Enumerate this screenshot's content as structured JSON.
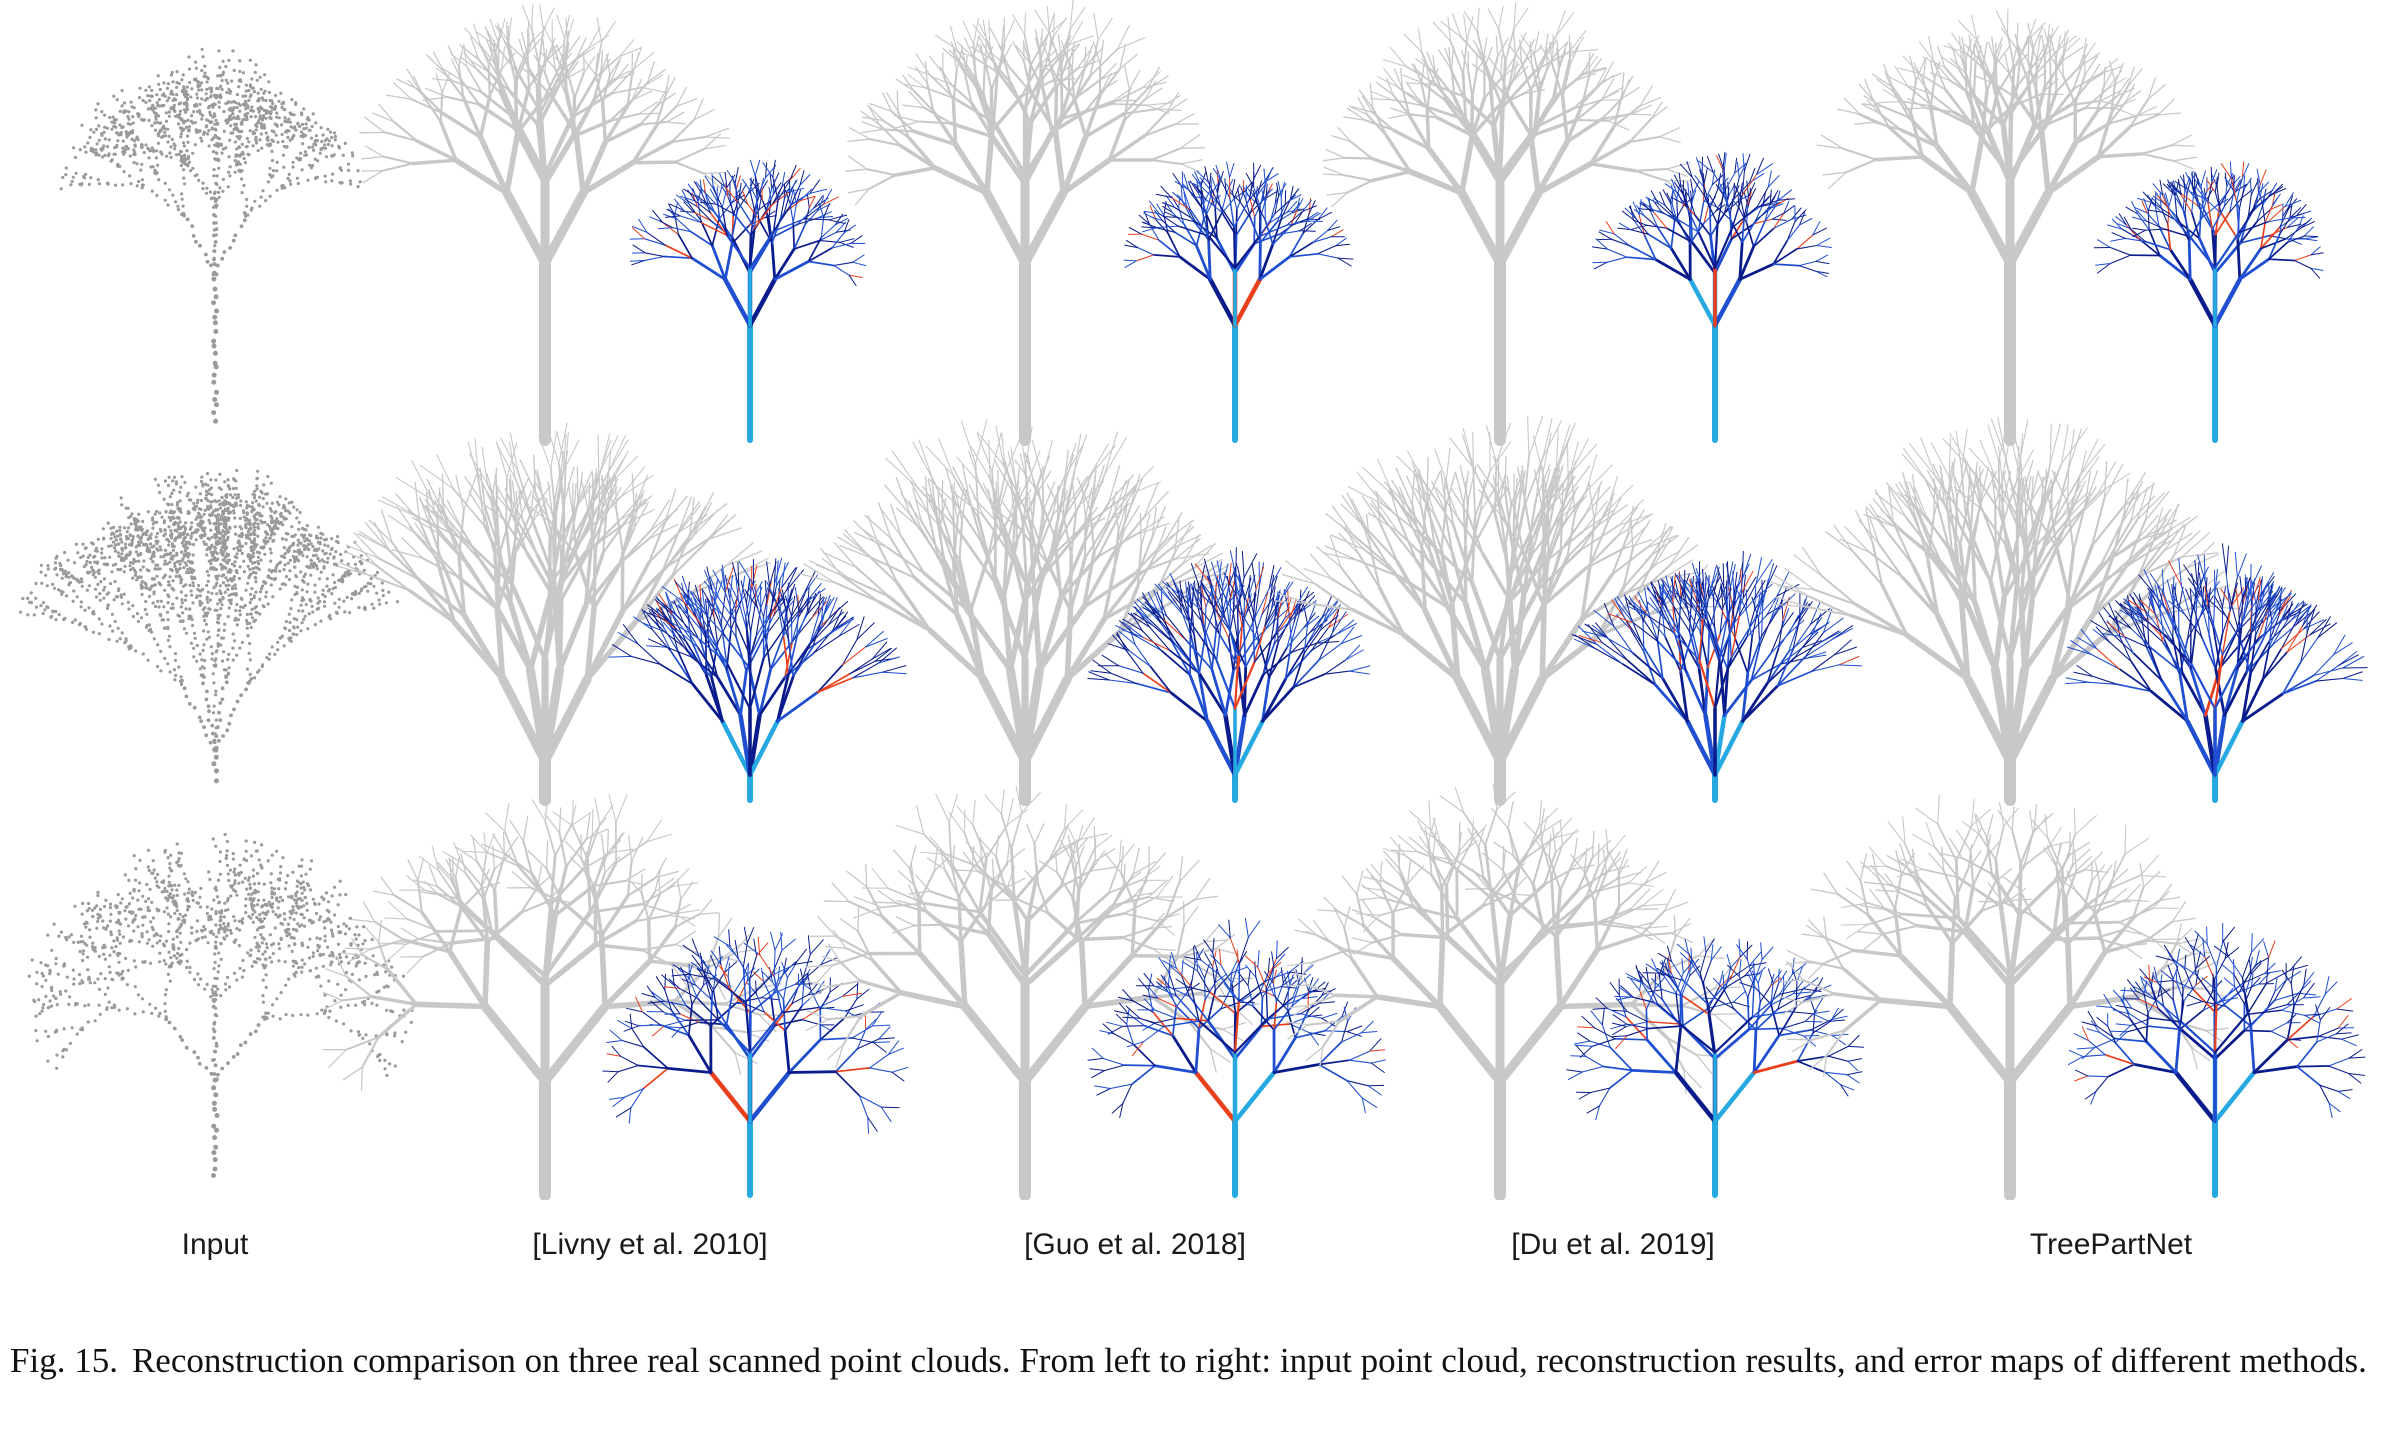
{
  "figure": {
    "columns": [
      {
        "id": "input",
        "label": "Input",
        "kind": "points"
      },
      {
        "id": "livny",
        "label": "[Livny et al. 2010]",
        "kind": "mesh"
      },
      {
        "id": "guo",
        "label": "[Guo et al. 2018]",
        "kind": "mesh"
      },
      {
        "id": "du",
        "label": "[Du et al. 2019]",
        "kind": "mesh"
      },
      {
        "id": "treepartnet",
        "label": "TreePartNet",
        "kind": "mesh"
      }
    ],
    "rows": [
      {
        "id": "tree-1",
        "shape": "sparse-tall"
      },
      {
        "id": "tree-2",
        "shape": "vase"
      },
      {
        "id": "tree-3",
        "shape": "round"
      }
    ],
    "error_colors": [
      "#0a1c8c",
      "#1f4fd0",
      "#26a8e0",
      "#39d0a0",
      "#f5d020",
      "#e8401c"
    ],
    "mesh_color": "#c8c8c8",
    "point_color": "#9a9a9a"
  },
  "caption": {
    "number": "Fig. 15.",
    "text": "Reconstruction comparison on three real scanned point clouds. From left to right: input point cloud, reconstruction results, and error maps of different methods."
  }
}
